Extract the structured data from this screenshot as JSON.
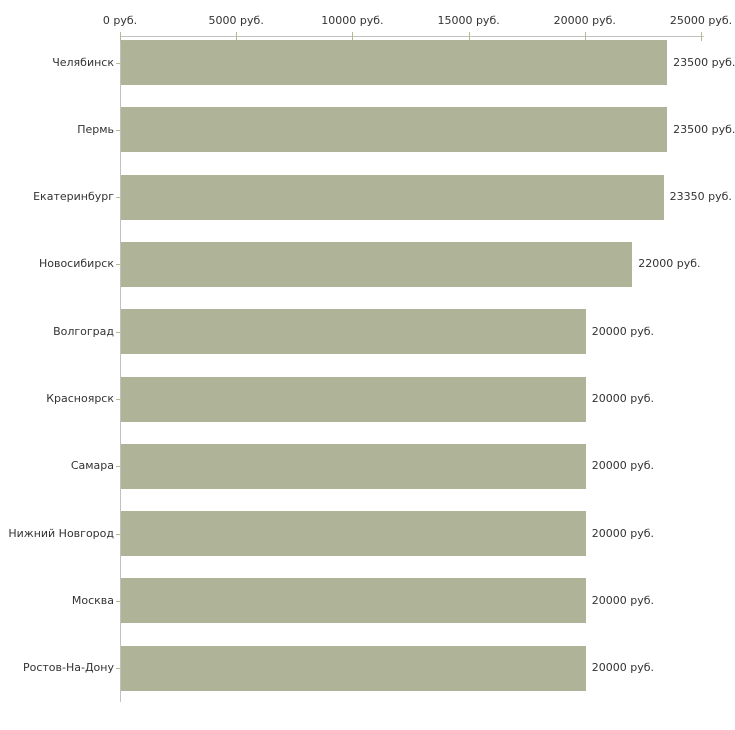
{
  "chart_data": {
    "type": "bar",
    "orientation": "horizontal",
    "title": "",
    "xlabel": "",
    "ylabel": "",
    "xlim": [
      0,
      25000
    ],
    "grid": false,
    "legend": null,
    "categories": [
      "Челябинск",
      "Пермь",
      "Екатеринбург",
      "Новосибирск",
      "Волгоград",
      "Красноярск",
      "Самара",
      "Нижний Новгород",
      "Москва",
      "Ростов-На-Дону"
    ],
    "values": [
      23500,
      23500,
      23350,
      22000,
      20000,
      20000,
      20000,
      20000,
      20000,
      20000
    ],
    "value_labels": [
      "23500 руб.",
      "23500 руб.",
      "23350 руб.",
      "22000 руб.",
      "20000 руб.",
      "20000 руб.",
      "20000 руб.",
      "20000 руб.",
      "20000 руб.",
      "20000 руб."
    ],
    "x_ticks": [
      0,
      5000,
      10000,
      15000,
      20000,
      25000
    ],
    "x_tick_labels": [
      "0 руб.",
      "5000 руб.",
      "10000 руб.",
      "15000 руб.",
      "20000 руб.",
      "25000 руб."
    ],
    "colors": {
      "bar": "#afb499",
      "axis_line": "#c0c0c0",
      "tick_mark": "#b5ba8e",
      "text": "#333333",
      "background": "#ffffff"
    }
  }
}
